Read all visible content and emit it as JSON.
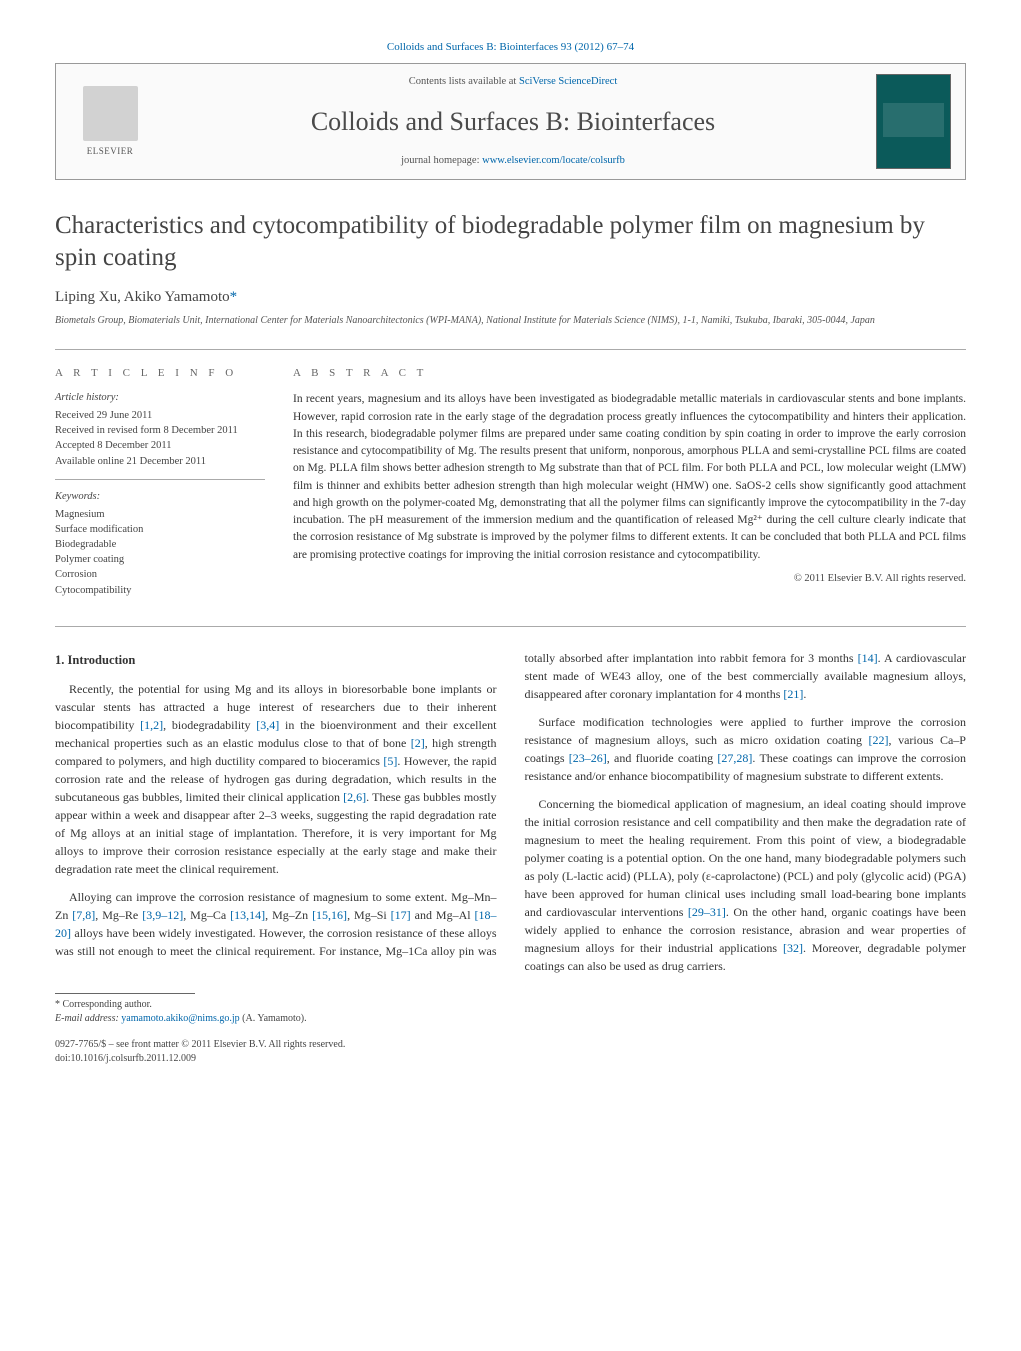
{
  "colors": {
    "link": "#0066aa",
    "text": "#333333",
    "muted": "#555555",
    "rule": "#aaaaaa",
    "cover_bg": "#0b5a5a"
  },
  "fonts": {
    "body_family": "Georgia, 'Times New Roman', serif",
    "journal_name_size_pt": 26,
    "title_size_pt": 25,
    "body_size_pt": 12,
    "abstract_size_pt": 11.5,
    "small_size_pt": 10.5
  },
  "top_journal_ref": "Colloids and Surfaces B: Biointerfaces 93 (2012) 67–74",
  "publisher_logo_label": "ELSEVIER",
  "contents_prefix": "Contents lists available at ",
  "contents_link": "SciVerse ScienceDirect",
  "journal_name": "Colloids and Surfaces B: Biointerfaces",
  "homepage_prefix": "journal homepage: ",
  "homepage_link": "www.elsevier.com/locate/colsurfb",
  "title": "Characteristics and cytocompatibility of biodegradable polymer film on magnesium by spin coating",
  "authors_plain": "Liping Xu, Akiko Yamamoto",
  "author1": "Liping Xu, ",
  "author2": "Akiko Yamamoto",
  "corr_marker": "*",
  "affiliation": "Biometals Group, Biomaterials Unit, International Center for Materials Nanoarchitectonics (WPI-MANA), National Institute for Materials Science (NIMS), 1-1, Namiki, Tsukuba, Ibaraki, 305-0044, Japan",
  "article_info_label": "a r t i c l e   i n f o",
  "abstract_label": "a b s t r a c t",
  "history": {
    "heading": "Article history:",
    "received": "Received 29 June 2011",
    "revised": "Received in revised form 8 December 2011",
    "accepted": "Accepted 8 December 2011",
    "online": "Available online 21 December 2011"
  },
  "keywords_heading": "Keywords:",
  "keywords": [
    "Magnesium",
    "Surface modification",
    "Biodegradable",
    "Polymer coating",
    "Corrosion",
    "Cytocompatibility"
  ],
  "abstract": "In recent years, magnesium and its alloys have been investigated as biodegradable metallic materials in cardiovascular stents and bone implants. However, rapid corrosion rate in the early stage of the degradation process greatly influences the cytocompatibility and hinters their application. In this research, biodegradable polymer films are prepared under same coating condition by spin coating in order to improve the early corrosion resistance and cytocompatibility of Mg. The results present that uniform, nonporous, amorphous PLLA and semi-crystalline PCL films are coated on Mg. PLLA film shows better adhesion strength to Mg substrate than that of PCL film. For both PLLA and PCL, low molecular weight (LMW) film is thinner and exhibits better adhesion strength than high molecular weight (HMW) one. SaOS-2 cells show significantly good attachment and high growth on the polymer-coated Mg, demonstrating that all the polymer films can significantly improve the cytocompatibility in the 7-day incubation. The pH measurement of the immersion medium and the quantification of released Mg²⁺ during the cell culture clearly indicate that the corrosion resistance of Mg substrate is improved by the polymer films to different extents. It can be concluded that both PLLA and PCL films are promising protective coatings for improving the initial corrosion resistance and cytocompatibility.",
  "abstract_copyright": "© 2011 Elsevier B.V. All rights reserved.",
  "section1_heading": "1. Introduction",
  "para1": "Recently, the potential for using Mg and its alloys in bioresorbable bone implants or vascular stents has attracted a huge interest of researchers due to their inherent biocompatibility [1,2], biodegradability [3,4] in the bioenvironment and their excellent mechanical properties such as an elastic modulus close to that of bone [2], high strength compared to polymers, and high ductility compared to bioceramics [5]. However, the rapid corrosion rate and the release of hydrogen gas during degradation, which results in the subcutaneous gas bubbles, limited their clinical application [2,6]. These gas bubbles mostly appear within a week and disappear after 2–3 weeks, suggesting the rapid degradation rate of Mg alloys at an initial stage of implantation. Therefore, it is very important for Mg alloys to improve their corrosion resistance especially at the early stage and make their degradation rate meet the clinical requirement.",
  "para2": "Alloying can improve the corrosion resistance of magnesium to some extent. Mg–Mn–Zn [7,8], Mg–Re [3,9–12], Mg–Ca [13,14], Mg–Zn [15,16], Mg–Si [17] and Mg–Al [18–20] alloys have been widely investigated. However, the corrosion resistance of these alloys was still not enough to meet the clinical requirement. For instance, Mg–1Ca alloy pin was totally absorbed after implantation into rabbit femora for 3 months [14]. A cardiovascular stent made of WE43 alloy, one of the best commercially available magnesium alloys, disappeared after coronary implantation for 4 months [21].",
  "para3": "Surface modification technologies were applied to further improve the corrosion resistance of magnesium alloys, such as micro oxidation coating [22], various Ca–P coatings [23–26], and fluoride coating [27,28]. These coatings can improve the corrosion resistance and/or enhance biocompatibility of magnesium substrate to different extents.",
  "para4": "Concerning the biomedical application of magnesium, an ideal coating should improve the initial corrosion resistance and cell compatibility and then make the degradation rate of magnesium to meet the healing requirement. From this point of view, a biodegradable polymer coating is a potential option. On the one hand, many biodegradable polymers such as poly (L-lactic acid) (PLLA), poly (ε-caprolactone) (PCL) and poly (glycolic acid) (PGA) have been approved for human clinical uses including small load-bearing bone implants and cardiovascular interventions [29–31]. On the other hand, organic coatings have been widely applied to enhance the corrosion resistance, abrasion and wear properties of magnesium alloys for their industrial applications [32]. Moreover, degradable polymer coatings can also be used as drug carriers.",
  "corresponding_label": "* Corresponding author.",
  "email_label": "E-mail address: ",
  "email": "yamamoto.akiko@nims.go.jp",
  "email_who": " (A. Yamamoto).",
  "issn_line": "0927-7765/$ – see front matter © 2011 Elsevier B.V. All rights reserved.",
  "doi_line": "doi:10.1016/j.colsurfb.2011.12.009"
}
